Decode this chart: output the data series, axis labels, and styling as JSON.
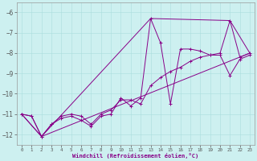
{
  "xlabel": "Windchill (Refroidissement éolien,°C)",
  "background_color": "#cdf0f0",
  "line_color": "#880088",
  "xlim": [
    -0.5,
    23.5
  ],
  "ylim": [
    -12.5,
    -5.5
  ],
  "yticks": [
    -12,
    -11,
    -10,
    -9,
    -8,
    -7,
    -6
  ],
  "xticks": [
    0,
    1,
    2,
    3,
    4,
    5,
    6,
    7,
    8,
    9,
    10,
    11,
    12,
    13,
    14,
    15,
    16,
    17,
    18,
    19,
    20,
    21,
    22,
    23
  ],
  "series1": [
    [
      0,
      -11.0
    ],
    [
      1,
      -11.1
    ],
    [
      2,
      -12.1
    ],
    [
      3,
      -11.5
    ],
    [
      4,
      -11.2
    ],
    [
      5,
      -11.1
    ],
    [
      6,
      -11.3
    ],
    [
      7,
      -11.6
    ],
    [
      8,
      -11.1
    ],
    [
      9,
      -11.0
    ],
    [
      10,
      -10.2
    ],
    [
      11,
      -10.6
    ],
    [
      12,
      -10.2
    ],
    [
      13,
      -6.3
    ],
    [
      14,
      -7.5
    ],
    [
      15,
      -10.5
    ],
    [
      16,
      -7.8
    ],
    [
      17,
      -7.8
    ],
    [
      18,
      -7.9
    ],
    [
      19,
      -8.1
    ],
    [
      20,
      -8.0
    ],
    [
      21,
      -6.4
    ],
    [
      22,
      -8.2
    ],
    [
      23,
      -8.0
    ]
  ],
  "series2": [
    [
      0,
      -11.0
    ],
    [
      1,
      -11.1
    ],
    [
      2,
      -12.1
    ],
    [
      3,
      -11.5
    ],
    [
      4,
      -11.1
    ],
    [
      5,
      -11.0
    ],
    [
      6,
      -11.1
    ],
    [
      7,
      -11.5
    ],
    [
      8,
      -11.0
    ],
    [
      9,
      -10.8
    ],
    [
      10,
      -10.3
    ],
    [
      11,
      -10.3
    ],
    [
      12,
      -10.5
    ],
    [
      13,
      -9.6
    ],
    [
      14,
      -9.2
    ],
    [
      15,
      -8.9
    ],
    [
      16,
      -8.7
    ],
    [
      17,
      -8.4
    ],
    [
      18,
      -8.2
    ],
    [
      19,
      -8.1
    ],
    [
      20,
      -8.1
    ],
    [
      21,
      -9.1
    ],
    [
      22,
      -8.3
    ],
    [
      23,
      -8.1
    ]
  ],
  "series3": [
    [
      0,
      -11.0
    ],
    [
      2,
      -12.1
    ],
    [
      13,
      -6.3
    ],
    [
      21,
      -6.4
    ],
    [
      23,
      -8.0
    ]
  ],
  "series4": [
    [
      0,
      -11.0
    ],
    [
      2,
      -12.1
    ],
    [
      23,
      -8.0
    ]
  ]
}
